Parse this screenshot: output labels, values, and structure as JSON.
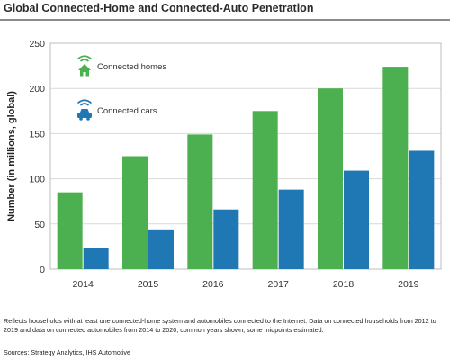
{
  "title": "Global Connected-Home and Connected-Auto Penetration",
  "note": "Reflects households with at least one connected-home system and automobiles connected to the Internet. Data on connected households from 2012 to 2019 and data on connected automobiles from 2014 to 2020; common years shown; some midpoints estimated.",
  "sources": "Sources: Strategy Analytics, IHS Automotive",
  "colors": {
    "homes": "#4caf50",
    "cars": "#1f77b4",
    "grid": "#d9d9d9",
    "frame": "#bdbdbd"
  },
  "chart_data": {
    "type": "bar",
    "categories": [
      "2014",
      "2015",
      "2016",
      "2017",
      "2018",
      "2019"
    ],
    "series": [
      {
        "name": "Connected homes",
        "icon": "house-wifi-icon",
        "values": [
          85,
          125,
          149,
          175,
          200,
          224
        ]
      },
      {
        "name": "Connected cars",
        "icon": "car-wifi-icon",
        "values": [
          23,
          44,
          66,
          88,
          109,
          131
        ]
      }
    ],
    "ylabel": "Number (in millions, global)",
    "xlabel": "",
    "ylim": [
      0,
      250
    ],
    "yticks": [
      "0",
      "50",
      "100",
      "150",
      "200",
      "250"
    ],
    "grid": true,
    "legend": "top-left"
  }
}
